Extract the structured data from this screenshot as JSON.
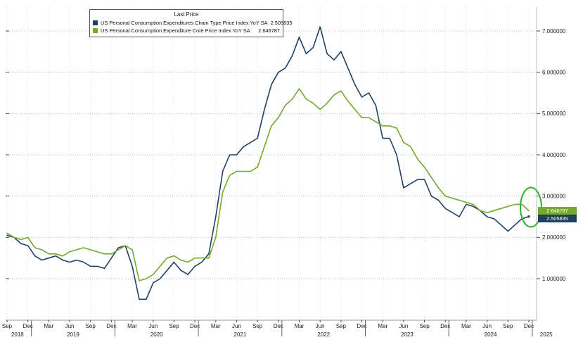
{
  "chart_data": {
    "type": "line",
    "legend_title": "Last Price",
    "x_axis": {
      "start": "2018-09",
      "end": "2024-12",
      "tick_interval": "quarter",
      "x_tick_labels": [
        "Sep",
        "Dec",
        "Mar",
        "Jun",
        "Sep",
        "Dec",
        "Mar",
        "Jun",
        "Sep",
        "Dec",
        "Mar",
        "Jun",
        "Sep",
        "Dec",
        "Mar",
        "Jun",
        "Sep",
        "Dec",
        "Mar",
        "Jun",
        "Sep",
        "Dec",
        "Mar",
        "Jun",
        "Sep",
        "Dec"
      ],
      "years": [
        {
          "label": "2018",
          "center_month": 1.5
        },
        {
          "label": "2019",
          "center_month": 9.5
        },
        {
          "label": "2020",
          "center_month": 21.5
        },
        {
          "label": "2021",
          "center_month": 33.5
        },
        {
          "label": "2022",
          "center_month": 45.5
        },
        {
          "label": "2023",
          "center_month": 57.5
        },
        {
          "label": "2024",
          "center_month": 69.5
        },
        {
          "label": "2025",
          "center_month": 77.5
        }
      ],
      "year_separators_month": [
        3.5,
        15.5,
        27.5,
        39.5,
        51.5,
        63.5,
        75.5
      ]
    },
    "y_axis": {
      "ticks": [
        1,
        2,
        3,
        4,
        5,
        6,
        7
      ],
      "decimals": 6,
      "range": [
        0,
        7.6
      ],
      "side": "right",
      "grid": "dotted"
    },
    "series": [
      {
        "id": "headline",
        "name": "US Personal Consumption Expenditures Chain Type Price Index YoY SA",
        "last_price": "2.505835",
        "color": "#1f4066",
        "values": [
          2.05,
          2.0,
          1.85,
          1.8,
          1.55,
          1.45,
          1.5,
          1.55,
          1.45,
          1.4,
          1.45,
          1.4,
          1.3,
          1.3,
          1.25,
          1.5,
          1.75,
          1.8,
          1.3,
          0.5,
          0.5,
          0.9,
          1.0,
          1.2,
          1.4,
          1.2,
          1.1,
          1.3,
          1.4,
          1.6,
          2.5,
          3.6,
          4.0,
          4.0,
          4.2,
          4.3,
          4.4,
          5.1,
          5.7,
          6.0,
          6.1,
          6.4,
          6.85,
          6.45,
          6.6,
          7.1,
          6.45,
          6.3,
          6.5,
          6.1,
          5.7,
          5.4,
          5.5,
          5.2,
          4.4,
          4.4,
          4.0,
          3.2,
          3.3,
          3.4,
          3.4,
          3.0,
          2.9,
          2.7,
          2.6,
          2.5,
          2.8,
          2.75,
          2.65,
          2.5,
          2.45,
          2.3,
          2.15,
          2.3,
          2.45,
          2.505835
        ]
      },
      {
        "id": "core",
        "name": "US Personal Consumption Expenditure Core Price Index YoY SA",
        "last_price": "2.646787",
        "color": "#76a72e",
        "values": [
          2.1,
          2.0,
          1.95,
          2.0,
          1.75,
          1.7,
          1.6,
          1.6,
          1.55,
          1.65,
          1.7,
          1.75,
          1.7,
          1.65,
          1.6,
          1.6,
          1.7,
          1.8,
          1.7,
          0.95,
          1.0,
          1.1,
          1.3,
          1.5,
          1.55,
          1.45,
          1.4,
          1.5,
          1.5,
          1.5,
          2.0,
          3.1,
          3.5,
          3.6,
          3.6,
          3.6,
          3.7,
          4.2,
          4.7,
          4.9,
          5.2,
          5.35,
          5.6,
          5.35,
          5.25,
          5.1,
          5.25,
          5.45,
          5.55,
          5.3,
          5.1,
          4.9,
          4.9,
          4.8,
          4.7,
          4.7,
          4.65,
          4.3,
          4.2,
          3.9,
          3.7,
          3.45,
          3.2,
          3.0,
          2.95,
          2.9,
          2.85,
          2.8,
          2.65,
          2.6,
          2.65,
          2.7,
          2.75,
          2.8,
          2.8,
          2.646787
        ]
      }
    ],
    "annotation": {
      "shape": "ellipse",
      "meaning": "highlight of latest values",
      "color": "#2fae2f"
    }
  }
}
